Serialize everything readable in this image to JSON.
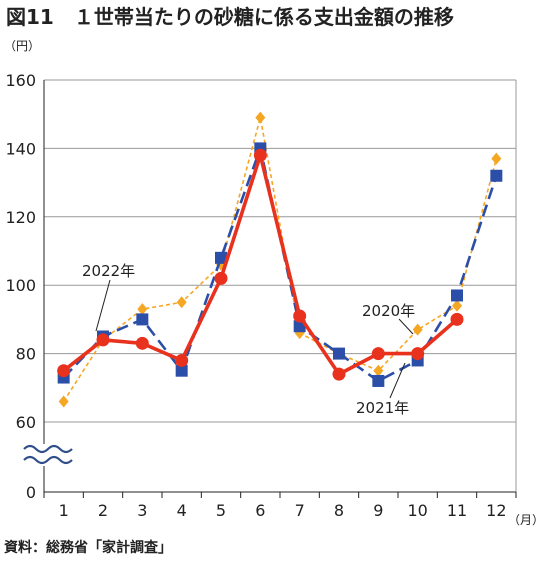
{
  "title": "図11　１世帯当たりの砂糖に係る支出金額の推移",
  "source": "資料：総務省「家計調査」",
  "colors": {
    "series_2020": "#F5A623",
    "series_2021": "#2B4FA8",
    "series_2022": "#E8321E",
    "grid": "#999999",
    "axis": "#222222"
  },
  "chart_data": {
    "type": "line",
    "title": "図11　１世帯当たりの砂糖に係る支出金額の推移",
    "ylabel": "（円）",
    "xlabel": "（月）",
    "x": [
      "1",
      "2",
      "3",
      "4",
      "5",
      "6",
      "7",
      "8",
      "9",
      "10",
      "11",
      "12"
    ],
    "y_ticks": [
      "0",
      "60",
      "80",
      "100",
      "120",
      "140",
      "160"
    ],
    "ylim": [
      60,
      160
    ],
    "axis_break": true,
    "grid": true,
    "series": [
      {
        "name": "2020年",
        "color": "#F5A623",
        "marker": "diamond",
        "style": "dashed",
        "values": [
          66,
          84,
          93,
          95,
          106,
          149,
          86,
          80,
          75,
          87,
          94,
          137
        ]
      },
      {
        "name": "2021年",
        "color": "#2B4FA8",
        "marker": "square",
        "style": "long-dashed",
        "values": [
          73,
          85,
          90,
          75,
          108,
          140,
          88,
          80,
          72,
          78,
          97,
          132
        ]
      },
      {
        "name": "2022年",
        "color": "#E8321E",
        "marker": "circle",
        "style": "solid",
        "values": [
          75,
          84,
          83,
          78,
          102,
          138,
          91,
          74,
          80,
          80,
          90,
          null
        ]
      }
    ]
  }
}
